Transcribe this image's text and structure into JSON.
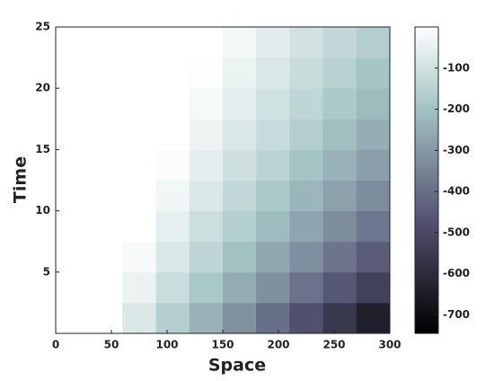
{
  "chart_data": {
    "type": "heatmap",
    "xlabel": "Space",
    "ylabel": "Time",
    "x": [
      15,
      45,
      75,
      105,
      135,
      165,
      195,
      225,
      255,
      285
    ],
    "y": [
      1.25,
      3.75,
      6.25,
      8.75,
      11.25,
      13.75,
      16.25,
      18.75,
      21.25,
      23.75
    ],
    "z": [
      [
        0,
        0,
        -79,
        -159,
        -238,
        -318,
        -398,
        -477,
        -557,
        -637
      ],
      [
        0,
        0,
        -44,
        -114,
        -183,
        -252,
        -321,
        -390,
        -460,
        -529
      ],
      [
        0,
        0,
        -18,
        -79,
        -140,
        -202,
        -263,
        -324,
        -385,
        -446
      ],
      [
        0,
        0,
        0,
        -52,
        -107,
        -161,
        -216,
        -271,
        -326,
        -381
      ],
      [
        0,
        0,
        0,
        -29,
        -79,
        -129,
        -179,
        -228,
        -278,
        -328
      ],
      [
        0,
        0,
        0,
        -11,
        -56,
        -102,
        -147,
        -193,
        -238,
        -284
      ],
      [
        0,
        0,
        0,
        0,
        -37,
        -79,
        -121,
        -163,
        -205,
        -247
      ],
      [
        0,
        0,
        0,
        0,
        -21,
        -60,
        -99,
        -137,
        -176,
        -215
      ],
      [
        0,
        0,
        0,
        0,
        -7,
        -43,
        -79,
        -115,
        -152,
        -188
      ],
      [
        0,
        0,
        0,
        0,
        0,
        -28,
        -62,
        -96,
        -130,
        -164
      ]
    ],
    "xlim": [
      0,
      300
    ],
    "xticks": [
      0,
      50,
      100,
      150,
      200,
      250,
      300
    ],
    "ylim": [
      0,
      25
    ],
    "yticks": [
      5,
      10,
      15,
      20,
      25
    ],
    "colormap": "bone",
    "clim": [
      -745,
      0
    ],
    "cticks": [
      -100,
      -200,
      -300,
      -400,
      -500,
      -600,
      -700
    ]
  }
}
